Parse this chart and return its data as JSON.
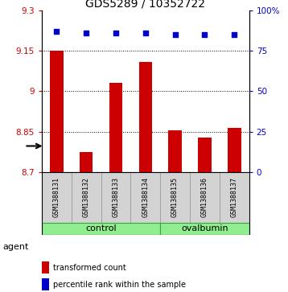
{
  "title": "GDS5289 / 10352722",
  "samples": [
    "GSM1388131",
    "GSM1388132",
    "GSM1388133",
    "GSM1388134",
    "GSM1388135",
    "GSM1388136",
    "GSM1388137"
  ],
  "bar_values": [
    9.15,
    8.775,
    9.03,
    9.11,
    8.855,
    8.83,
    8.865
  ],
  "percentile_values": [
    87,
    86,
    86,
    86,
    85,
    85,
    85
  ],
  "bar_color": "#cc0000",
  "dot_color": "#0000cc",
  "ylim_left": [
    8.7,
    9.3
  ],
  "ylim_right": [
    0,
    100
  ],
  "yticks_left": [
    8.7,
    8.85,
    9.0,
    9.15,
    9.3
  ],
  "yticks_right": [
    0,
    25,
    50,
    75,
    100
  ],
  "ytick_labels_left": [
    "8.7",
    "8.85",
    "9",
    "9.15",
    "9.3"
  ],
  "ytick_labels_right": [
    "0",
    "25",
    "50",
    "75",
    "100%"
  ],
  "grid_values": [
    8.85,
    9.0,
    9.15
  ],
  "control_samples": [
    0,
    1,
    2,
    3
  ],
  "ovalbumin_samples": [
    4,
    5,
    6
  ],
  "control_label": "control",
  "ovalbumin_label": "ovalbumin",
  "agent_label": "agent",
  "legend_bar_label": "transformed count",
  "legend_dot_label": "percentile rank within the sample",
  "bar_bottom": 8.7,
  "tick_fontsize": 7.5,
  "title_fontsize": 10,
  "sample_fontsize": 6,
  "group_label_fontsize": 8,
  "legend_fontsize": 7,
  "plot_bg_color": "#ffffff",
  "group_bg_color": "#90ee90",
  "cell_bg_color": "#d3d3d3"
}
